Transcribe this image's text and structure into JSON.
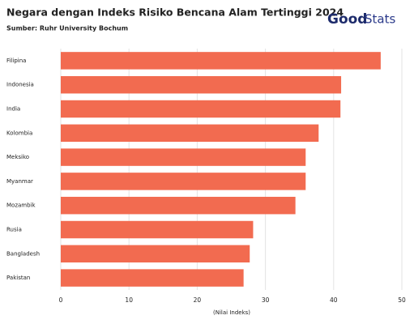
{
  "chart_data": {
    "type": "hbar",
    "title": "Negara dengan Indeks Risiko Bencana Alam Tertinggi 2024",
    "subtitle": "Sumber: Ruhr University Bochum",
    "logo": {
      "bold": "Good",
      "light": "Stats"
    },
    "x_label": "(Nilai Indeks)",
    "categories": [
      "Filipina",
      "Indonesia",
      "India",
      "Kolombia",
      "Meksiko",
      "Myanmar",
      "Mozambik",
      "Rusia",
      "Bangladesh",
      "Pakistan"
    ],
    "values": [
      46.9,
      41.1,
      41.0,
      37.8,
      35.9,
      35.9,
      34.4,
      28.2,
      27.7,
      26.8
    ],
    "color": "#f26b50",
    "xlim": [
      0,
      50
    ],
    "xticks": [
      0,
      10,
      20,
      30,
      40,
      50
    ],
    "grid": true
  }
}
